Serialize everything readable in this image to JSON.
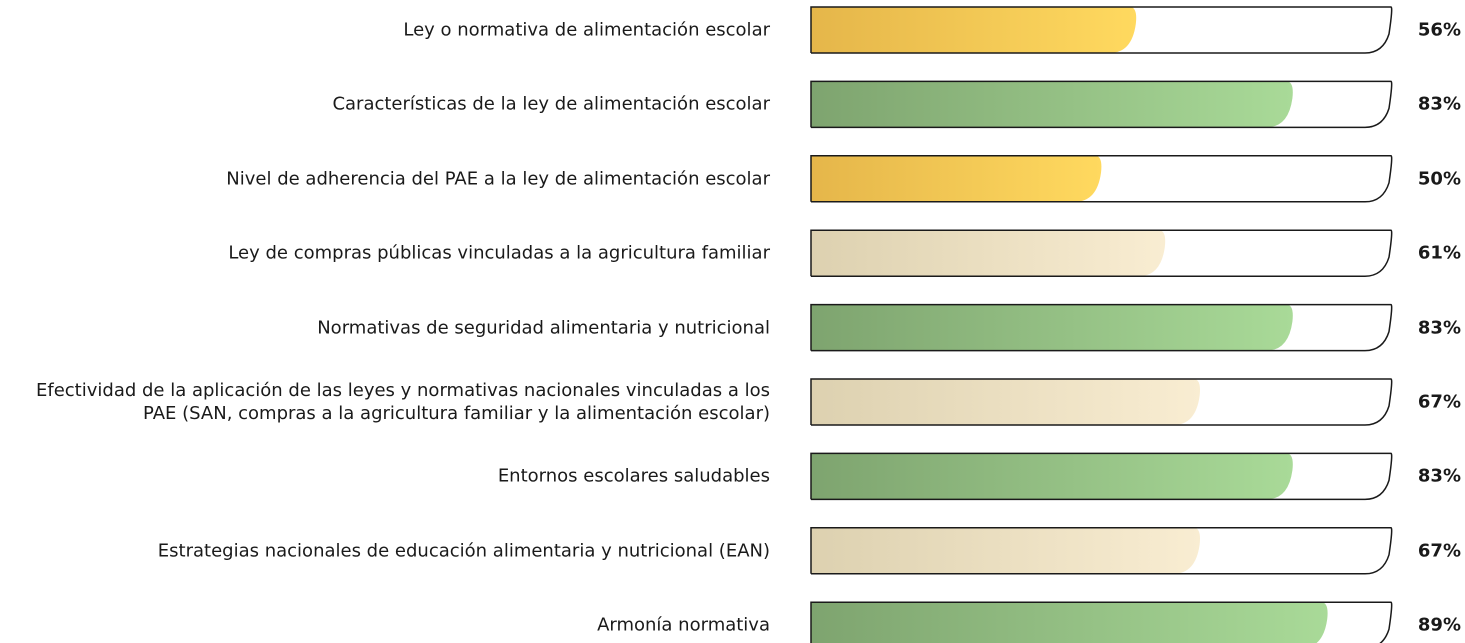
{
  "chart_data": {
    "type": "bar",
    "categories": [
      "Ley o normativa de alimentación escolar",
      "Características de la ley de alimentación escolar",
      "Nivel de adherencia del PAE a la ley de alimentación escolar",
      "Ley de compras públicas vinculadas a la agricultura familiar",
      "Normativas de seguridad alimentaria y nutricional",
      "Efectividad de la aplicación de las leyes y normativas nacionales vinculadas a los PAE (SAN, compras a la agricultura familiar y la alimentación escolar)",
      "Entornos escolares saludables",
      "Estrategias nacionales de educación alimentaria y nutricional (EAN)",
      "Armonía normativa"
    ],
    "values": [
      56,
      83,
      50,
      61,
      83,
      67,
      83,
      67,
      89
    ],
    "value_labels": [
      "56%",
      "83%",
      "50%",
      "61%",
      "83%",
      "67%",
      "83%",
      "67%",
      "89%"
    ],
    "colors": [
      [
        "#e5b64a",
        "#ffd95f"
      ],
      [
        "#7ea46f",
        "#a9da98"
      ],
      [
        "#e5b64a",
        "#ffd95f"
      ],
      [
        "#ddd1b0",
        "#f9edd2"
      ],
      [
        "#7ea46f",
        "#a9da98"
      ],
      [
        "#ddd1b0",
        "#f9edd2"
      ],
      [
        "#7ea46f",
        "#a9da98"
      ],
      [
        "#ddd1b0",
        "#f9edd2"
      ],
      [
        "#7ea46f",
        "#a9da98"
      ]
    ],
    "xlim": [
      0,
      100
    ]
  }
}
